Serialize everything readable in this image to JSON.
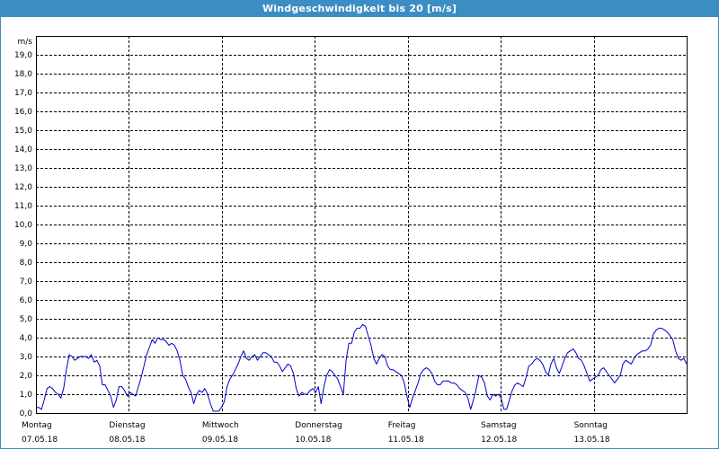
{
  "window": {
    "title": "Windgeschwindigkeit bis 20 [m/s]",
    "title_bg": "#3c8dc4"
  },
  "chart_data": {
    "type": "line",
    "title": "Windgeschwindigkeit bis 20 [m/s]",
    "ylabel": "m/s",
    "ylim": [
      0,
      20
    ],
    "yticks": [
      "0,0",
      "1,0",
      "2,0",
      "3,0",
      "4,0",
      "5,0",
      "6,0",
      "7,0",
      "8,0",
      "9,0",
      "10,0",
      "11,0",
      "12,0",
      "13,0",
      "14,0",
      "15,0",
      "16,0",
      "17,0",
      "18,0",
      "19,0"
    ],
    "xlim": [
      0,
      7
    ],
    "x_unit": "days from 07.05.18 00:00",
    "grid": true,
    "line_color": "#0000cc",
    "days": [
      {
        "weekday": "Montag",
        "date": "07.05.18"
      },
      {
        "weekday": "Dienstag",
        "date": "08.05.18"
      },
      {
        "weekday": "Mittwoch",
        "date": "09.05.18"
      },
      {
        "weekday": "Donnerstag",
        "date": "10.05.18"
      },
      {
        "weekday": "Freitag",
        "date": "11.05.18"
      },
      {
        "weekday": "Samstag",
        "date": "12.05.18"
      },
      {
        "weekday": "Sonntag",
        "date": "13.05.18"
      }
    ],
    "series": [
      {
        "values": [
          0.3,
          0.3,
          0.2,
          0.7,
          1.3,
          1.4,
          1.3,
          1.1,
          1.0,
          0.8,
          1.3,
          2.3,
          3.1,
          3.0,
          2.8,
          2.9,
          3.0,
          3.0,
          3.0,
          2.9,
          3.1,
          2.7,
          2.8,
          2.5,
          1.5,
          1.5,
          1.2,
          0.9,
          0.3,
          0.7,
          1.4,
          1.4,
          1.2,
          0.9,
          1.1,
          1.0,
          0.9,
          1.4,
          1.9,
          2.5,
          3.1,
          3.5,
          3.9,
          3.7,
          4.0,
          3.9,
          3.9,
          3.8,
          3.6,
          3.7,
          3.6,
          3.3,
          2.8,
          2.0,
          1.8,
          1.4,
          1.1,
          0.5,
          1.0,
          1.2,
          1.1,
          1.3,
          1.0,
          0.5,
          0.1,
          0.1,
          0.1,
          0.3,
          0.6,
          1.4,
          1.8,
          2.0,
          2.3,
          2.6,
          3.0,
          3.3,
          2.9,
          2.8,
          3.0,
          3.1,
          2.8,
          3.0,
          3.2,
          3.2,
          3.1,
          3.0,
          2.7,
          2.7,
          2.5,
          2.2,
          2.4,
          2.6,
          2.5,
          2.1,
          1.3,
          0.9,
          1.1,
          1.0,
          1.0,
          1.2,
          1.3,
          1.1,
          1.4,
          0.5,
          1.4,
          2.0,
          2.3,
          2.2,
          2.0,
          1.8,
          1.4,
          1.0,
          2.8,
          3.7,
          3.7,
          4.3,
          4.5,
          4.5,
          4.7,
          4.6,
          4.1,
          3.6,
          2.9,
          2.6,
          2.9,
          3.1,
          3.0,
          2.5,
          2.3,
          2.3,
          2.2,
          2.1,
          2.0,
          1.6,
          0.9,
          0.3,
          0.8,
          1.2,
          1.6,
          2.1,
          2.3,
          2.4,
          2.3,
          2.1,
          1.7,
          1.5,
          1.5,
          1.7,
          1.7,
          1.7,
          1.6,
          1.6,
          1.5,
          1.3,
          1.2,
          1.1,
          0.8,
          0.2,
          0.7,
          1.3,
          2.0,
          1.9,
          1.6,
          0.9,
          0.7,
          1.0,
          0.9,
          1.0,
          0.8,
          0.2,
          0.2,
          0.7,
          1.2,
          1.5,
          1.6,
          1.5,
          1.4,
          1.9,
          2.5,
          2.6,
          2.8,
          2.9,
          2.8,
          2.6,
          2.2,
          2.0,
          2.6,
          2.9,
          2.4,
          2.1,
          2.5,
          2.9,
          3.2,
          3.3,
          3.4,
          3.2,
          2.9,
          2.8,
          2.5,
          2.1,
          1.7,
          1.8,
          1.9,
          2.0,
          2.3,
          2.4,
          2.2,
          2.0,
          1.8,
          1.6,
          1.8,
          2.0,
          2.6,
          2.8,
          2.7,
          2.6,
          2.9,
          3.1,
          3.2,
          3.3,
          3.3,
          3.4,
          3.6,
          4.2,
          4.4,
          4.5,
          4.5,
          4.4,
          4.3,
          4.1,
          3.9,
          3.3,
          2.9,
          2.8,
          2.9,
          2.6
        ]
      }
    ]
  }
}
